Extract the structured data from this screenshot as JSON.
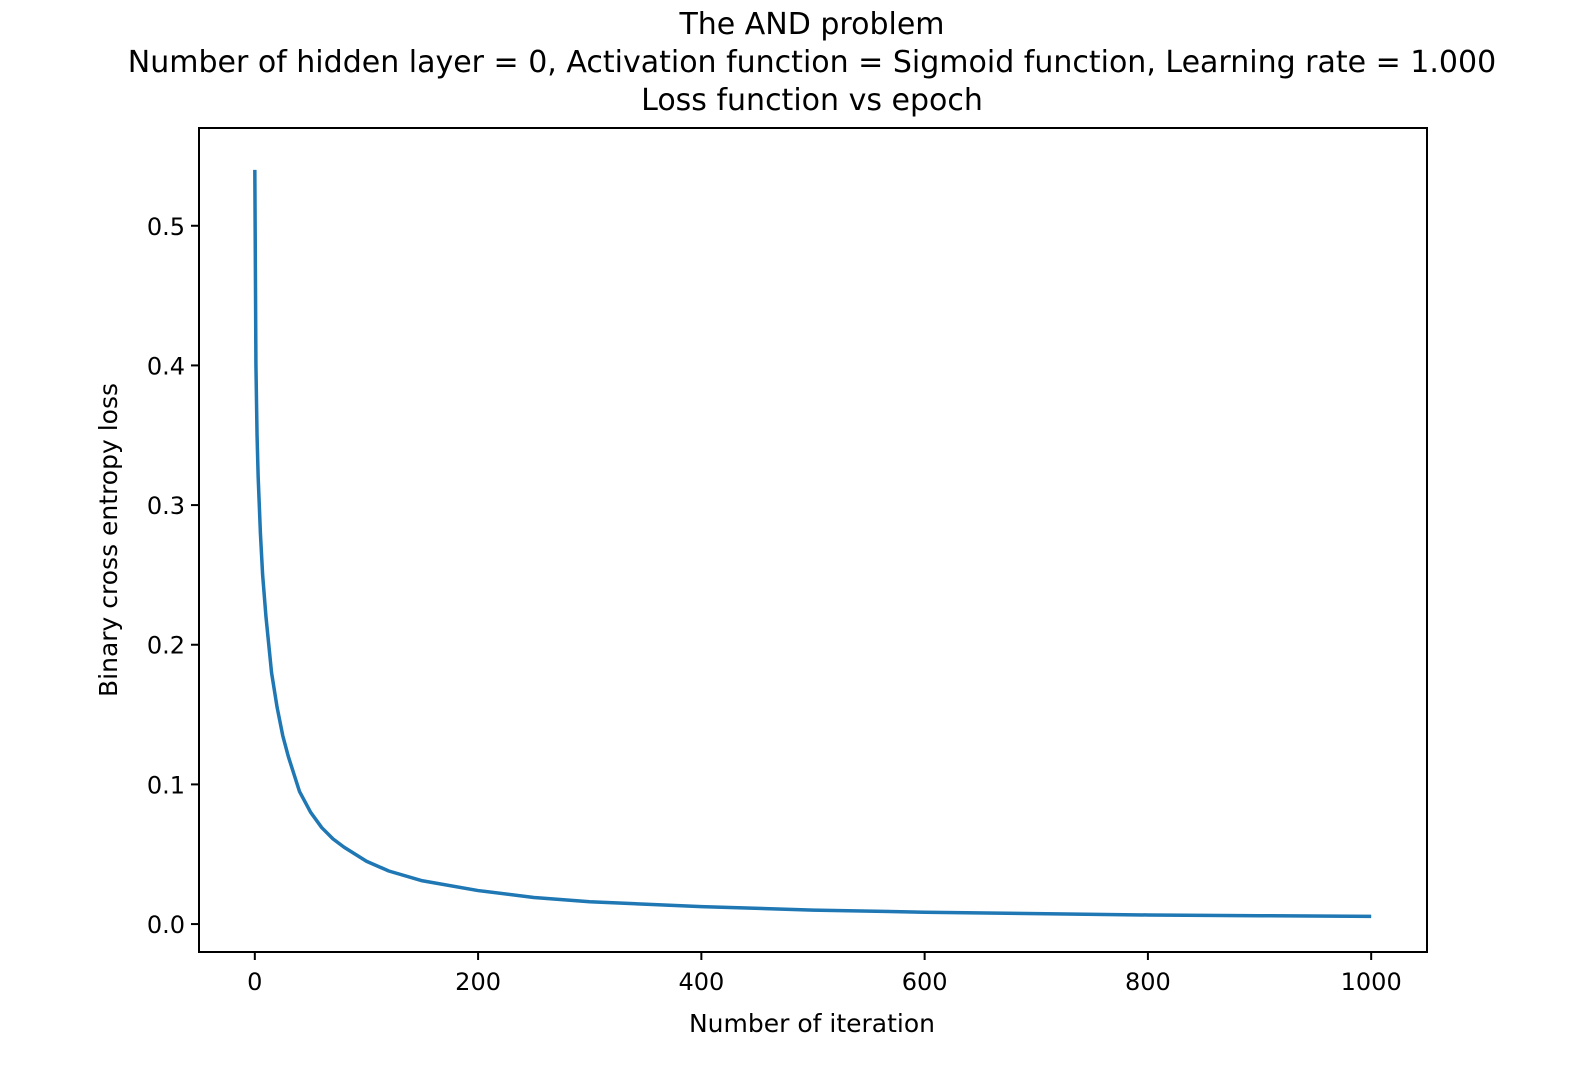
{
  "chart_data": {
    "type": "line",
    "title_lines": [
      "The AND problem",
      "Number of hidden layer = 0, Activation function = Sigmoid function, Learning rate = 1.000",
      "Loss function vs epoch"
    ],
    "xlabel": "Number of iteration",
    "ylabel": "Binary cross entropy loss",
    "xlim": [
      -50,
      1050
    ],
    "ylim": [
      -0.02,
      0.57
    ],
    "xticks": [
      0,
      200,
      400,
      600,
      800,
      1000
    ],
    "xtick_labels": [
      "0",
      "200",
      "400",
      "600",
      "800",
      "1000"
    ],
    "yticks": [
      0.0,
      0.1,
      0.2,
      0.3,
      0.4,
      0.5
    ],
    "ytick_labels": [
      "0.0",
      "0.1",
      "0.2",
      "0.3",
      "0.4",
      "0.5"
    ],
    "grid": false,
    "series_color": "#1f77b4",
    "series": [
      {
        "x": [
          0,
          1,
          2,
          3,
          5,
          7,
          10,
          15,
          20,
          25,
          30,
          40,
          50,
          60,
          70,
          80,
          100,
          120,
          150,
          200,
          250,
          300,
          400,
          500,
          600,
          700,
          800,
          900,
          1000
        ],
        "y": [
          0.54,
          0.4,
          0.35,
          0.32,
          0.28,
          0.25,
          0.22,
          0.18,
          0.155,
          0.135,
          0.12,
          0.095,
          0.08,
          0.069,
          0.061,
          0.055,
          0.045,
          0.038,
          0.031,
          0.024,
          0.019,
          0.016,
          0.0125,
          0.01,
          0.0085,
          0.0075,
          0.0065,
          0.006,
          0.0055
        ]
      }
    ]
  }
}
